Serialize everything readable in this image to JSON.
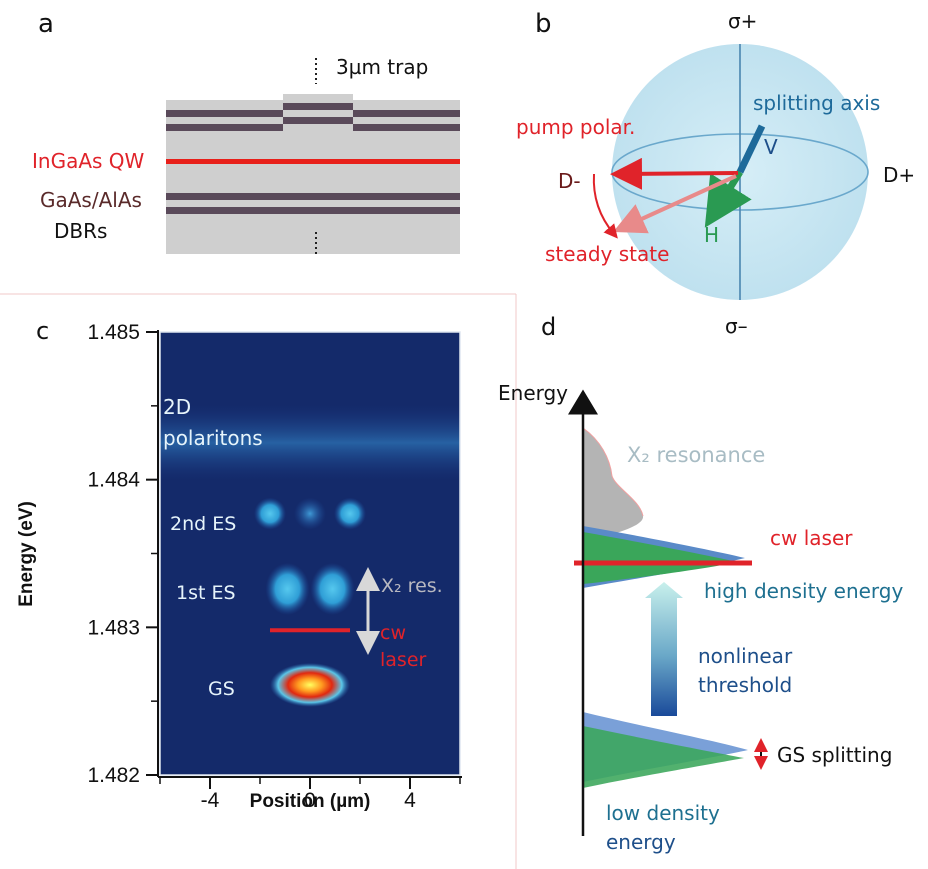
{
  "panel_a": {
    "letter": "a",
    "trap_label": "3µm trap",
    "qw_label": "InGaAs QW",
    "dbr_label_1": "GaAs/AlAs",
    "dbr_label_2": "DBRs",
    "colors": {
      "qw": "#e8201a",
      "layer_dark": "#5a4a5a",
      "layer_light": "#cfcfcf"
    }
  },
  "panel_b": {
    "letter": "b",
    "sigma_plus": "σ+",
    "sigma_minus": "σ–",
    "d_plus": "D+",
    "d_minus": "D-",
    "v": "V",
    "h": "H",
    "splitting_axis": "splitting axis",
    "pump_polar": "pump polar.",
    "steady_state": "steady state",
    "colors": {
      "sphere": "#c9e6f2",
      "pump": "#e0232a",
      "steady": "#e88a8a",
      "axis": "#1e6a9a",
      "h": "#2a9a52"
    }
  },
  "panel_c": {
    "letter": "c",
    "xlabel": "Position (µm)",
    "ylabel": "Energy (eV)",
    "labels": {
      "polaritons_1": "2D",
      "polaritons_2": "polaritons",
      "es2": "2nd ES",
      "es1": "1st ES",
      "gs": "GS",
      "x2res": "X₂ res.",
      "cw_1": "cw",
      "cw_2": "laser"
    },
    "colors": {
      "background": "#142a6a",
      "cw": "#e0232a"
    }
  },
  "chart_data": {
    "type": "heatmap",
    "title": "",
    "xlabel": "Position (µm)",
    "ylabel": "Energy (eV)",
    "xlim": [
      -6,
      6
    ],
    "ylim": [
      1.482,
      1.485
    ],
    "x_ticks": [
      -4,
      0,
      4
    ],
    "y_ticks": [
      1.482,
      1.483,
      1.484,
      1.485
    ],
    "x_tick_labels": [
      "-4",
      "0",
      "4"
    ],
    "y_tick_labels": [
      "1.482",
      "1.483",
      "1.484",
      "1.485"
    ],
    "cw_laser_energy": 1.48298,
    "cw_laser_x_range": [
      -1.6,
      1.6
    ],
    "modes": [
      {
        "name": "GS",
        "x": [
          0
        ],
        "energy": 1.48261
      },
      {
        "name": "1st ES",
        "x": [
          -0.9,
          0.9
        ],
        "energy": 1.48326
      },
      {
        "name": "2nd ES",
        "x": [
          -1.6,
          0,
          1.6
        ],
        "energy": 1.48377
      },
      {
        "name": "2D polaritons",
        "x": [
          0
        ],
        "energy": 1.48425
      }
    ],
    "grid": false
  },
  "panel_d": {
    "letter": "d",
    "energy_axis": "Energy",
    "x2_resonance": "X₂ resonance",
    "cw_laser": "cw laser",
    "high_density": "high density energy",
    "nonlinear_1": "nonlinear",
    "nonlinear_2": "threshold",
    "gs_splitting": "GS splitting",
    "low_density_1": "low density",
    "low_density_2": "energy",
    "colors": {
      "grey": "#b4b4b4",
      "green": "#3aa65a",
      "blue": "#5a8ac8",
      "red": "#e0232a"
    }
  }
}
